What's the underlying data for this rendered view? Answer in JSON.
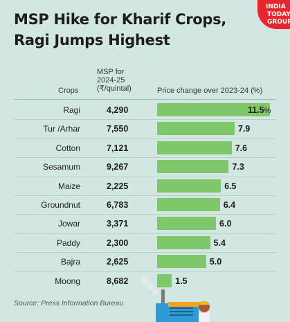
{
  "title_line1": "MSP Hike for Kharif Crops,",
  "title_line2": "Ragi Jumps Highest",
  "logo": {
    "line1": "INDIA",
    "line2": "TODAY",
    "line3": "GROUP"
  },
  "headers": {
    "crops": "Crops",
    "msp_line1": "MSP for",
    "msp_line2": "2024-25",
    "msp_line3": "(₹/quintal)",
    "price_change": "Price change over 2023-24 (%)"
  },
  "source": "Source: Press Information Bureau",
  "colors": {
    "bar": "#7ec86a",
    "background": "#d3e7e2",
    "logo": "#e8262d"
  },
  "chart_data": {
    "type": "bar",
    "orientation": "horizontal",
    "categories": [
      "Ragi",
      "Tur /Arhar",
      "Cotton",
      "Sesamum",
      "Maize",
      "Groundnut",
      "Jowar",
      "Paddy",
      "Bajra",
      "Moong"
    ],
    "msp": [
      "4,290",
      "7,550",
      "7,121",
      "9,267",
      "2,225",
      "6,783",
      "3,371",
      "2,300",
      "2,625",
      "8,682"
    ],
    "values": [
      11.5,
      7.9,
      7.6,
      7.3,
      6.5,
      6.4,
      6.0,
      5.4,
      5.0,
      1.5
    ],
    "value_labels": [
      "11.5",
      "7.9",
      "7.6",
      "7.3",
      "6.5",
      "6.4",
      "6.0",
      "5.4",
      "5.0",
      "1.5"
    ],
    "first_value_suffix": "%",
    "xlim": [
      0,
      11.5
    ]
  }
}
